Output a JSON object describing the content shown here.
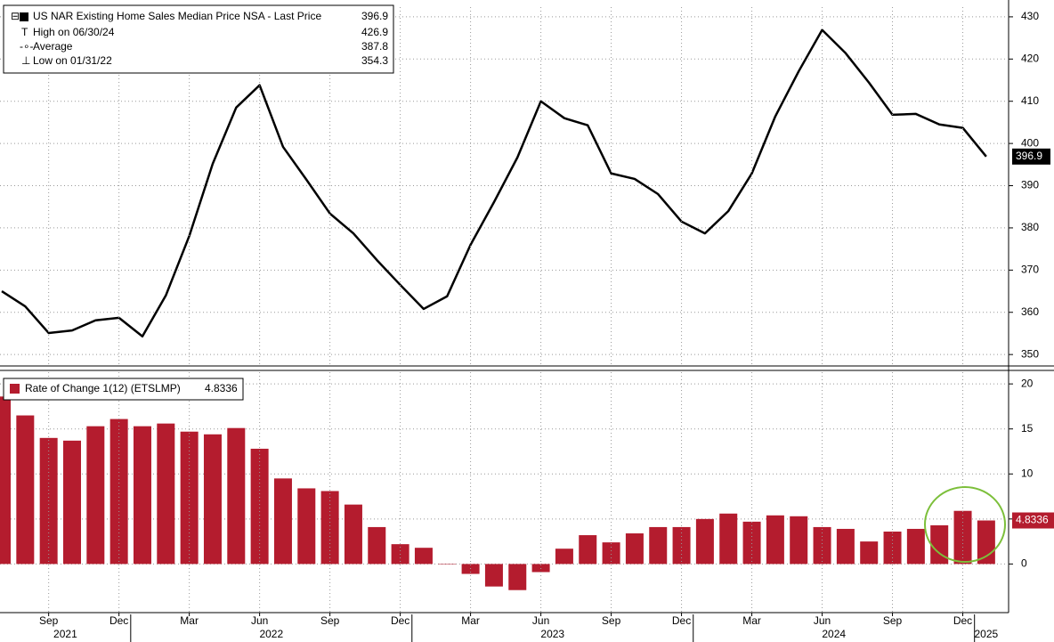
{
  "chart_data": [
    {
      "type": "line",
      "series": [
        {
          "name": "US NAR Existing Home Sales Median Price NSA - Last Price",
          "color": "#000000",
          "values": [
            365,
            361.4,
            355.1,
            355.7,
            358.1,
            358.7,
            354.3,
            364,
            378.1,
            395.2,
            408.5,
            413.8,
            399.2,
            391.4,
            383.4,
            378.7,
            372.4,
            366.5,
            360.8,
            363.8,
            376,
            386.1,
            396.7,
            410,
            406,
            404.3,
            392.9,
            391.6,
            388,
            381.5,
            378.7,
            384,
            392.9,
            406.4,
            417.1,
            426.9,
            421.4,
            414.4,
            406.8,
            407,
            404.5,
            403.7,
            396.9
          ]
        }
      ],
      "stats": [
        {
          "label": "High on 06/30/24",
          "value": 426.9
        },
        {
          "label": "Average",
          "value": 387.8
        },
        {
          "label": "Low on 01/31/22",
          "value": 354.3
        }
      ],
      "ylim": [
        347.5,
        432.3
      ],
      "yticks": [
        350,
        360,
        370,
        380,
        390,
        400,
        410,
        420,
        430
      ],
      "grid": true
    },
    {
      "type": "bar",
      "x": [
        "2021-07",
        "2021-08",
        "2021-09",
        "2021-10",
        "2021-11",
        "2021-12",
        "2022-01",
        "2022-02",
        "2022-03",
        "2022-04",
        "2022-05",
        "2022-06",
        "2022-07",
        "2022-08",
        "2022-09",
        "2022-10",
        "2022-11",
        "2022-12",
        "2023-01",
        "2023-02",
        "2023-03",
        "2023-04",
        "2023-05",
        "2023-06",
        "2023-07",
        "2023-08",
        "2023-09",
        "2023-10",
        "2023-11",
        "2023-12",
        "2024-01",
        "2024-02",
        "2024-03",
        "2024-04",
        "2024-05",
        "2024-06",
        "2024-07",
        "2024-08",
        "2024-09",
        "2024-10",
        "2024-11",
        "2024-12",
        "2025-01"
      ],
      "series": [
        {
          "name": "Rate of Change 1(12) (ETSLMP)",
          "color": "#b41c2e",
          "values": [
            18.6,
            16.5,
            14,
            13.7,
            15.3,
            16.1,
            15.3,
            15.6,
            14.7,
            14.4,
            15.1,
            12.8,
            9.5,
            8.4,
            8.1,
            6.6,
            4.1,
            2.2,
            1.8,
            0,
            -1.1,
            -2.5,
            -2.9,
            -0.9,
            1.7,
            3.2,
            2.4,
            3.4,
            4.1,
            4.1,
            5,
            5.6,
            4.7,
            5.4,
            5.3,
            4.1,
            3.9,
            2.5,
            3.6,
            3.9,
            4.3,
            5.9,
            4.8336
          ]
        }
      ],
      "xticks": [
        {
          "value": "2021-09",
          "label": "Sep"
        },
        {
          "value": "2021-12",
          "label": "Dec"
        },
        {
          "value": "2022-03",
          "label": "Mar"
        },
        {
          "value": "2022-06",
          "label": "Jun"
        },
        {
          "value": "2022-09",
          "label": "Sep"
        },
        {
          "value": "2022-12",
          "label": "Dec"
        },
        {
          "value": "2023-03",
          "label": "Mar"
        },
        {
          "value": "2023-06",
          "label": "Jun"
        },
        {
          "value": "2023-09",
          "label": "Sep"
        },
        {
          "value": "2023-12",
          "label": "Dec"
        },
        {
          "value": "2024-03",
          "label": "Mar"
        },
        {
          "value": "2024-06",
          "label": "Jun"
        },
        {
          "value": "2024-09",
          "label": "Sep"
        },
        {
          "value": "2024-12",
          "label": "Dec"
        }
      ],
      "years": [
        "2021",
        "2022",
        "2023",
        "2024",
        "2025"
      ],
      "ylim": [
        -5.4,
        21.3
      ],
      "yticks": [
        0,
        5,
        10,
        15,
        20
      ],
      "grid": true
    }
  ]
}
